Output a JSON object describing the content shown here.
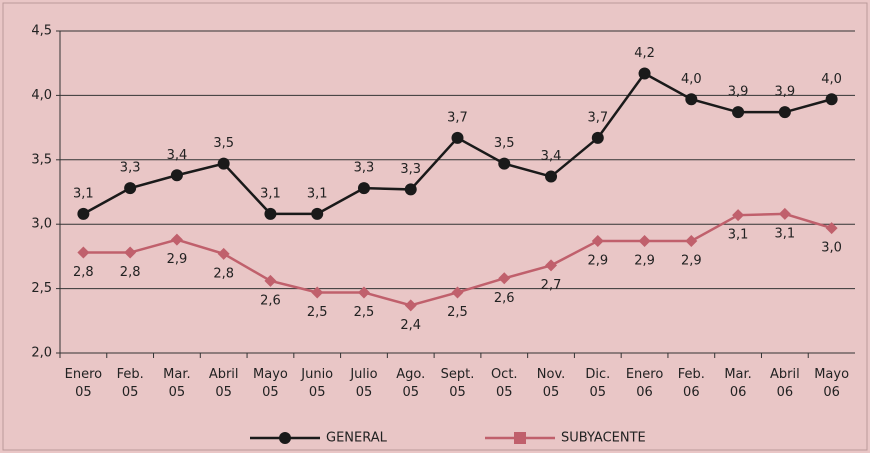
{
  "chart_data": {
    "type": "line",
    "categories": [
      "Enero 05",
      "Feb. 05",
      "Mar. 05",
      "Abril 05",
      "Mayo 05",
      "Junio 05",
      "Julio 05",
      "Ago. 05",
      "Sept. 05",
      "Oct. 05",
      "Nov. 05",
      "Dic. 05",
      "Enero 06",
      "Feb. 06",
      "Mar. 06",
      "Abril 06",
      "Mayo 06"
    ],
    "series": [
      {
        "name": "GENERAL",
        "color": "#1a1a1a",
        "marker": "circle",
        "label_position": "above",
        "values": [
          3.08,
          3.28,
          3.38,
          3.47,
          3.08,
          3.08,
          3.28,
          3.27,
          3.67,
          3.47,
          3.37,
          3.67,
          4.17,
          3.97,
          3.87,
          3.87,
          3.97
        ],
        "value_labels": [
          "3,1",
          "3,3",
          "3,4",
          "3,5",
          "3,1",
          "3,1",
          "3,3",
          "3,3",
          "3,7",
          "3,5",
          "3,4",
          "3,7",
          "4,2",
          "4,0",
          "3,9",
          "3,9",
          "4,0"
        ]
      },
      {
        "name": "SUBYACENTE",
        "color": "#c0606c",
        "marker": "diamond",
        "label_position": "below",
        "values": [
          2.78,
          2.78,
          2.88,
          2.77,
          2.56,
          2.47,
          2.47,
          2.37,
          2.47,
          2.58,
          2.68,
          2.87,
          2.87,
          2.87,
          3.07,
          3.08,
          2.97
        ],
        "value_labels": [
          "2,8",
          "2,8",
          "2,9",
          "2,8",
          "2,6",
          "2,5",
          "2,5",
          "2,4",
          "2,5",
          "2,6",
          "2,7",
          "2,9",
          "2,9",
          "2,9",
          "3,1",
          "3,1",
          "3,0"
        ]
      }
    ],
    "ylim": [
      2.0,
      4.5
    ],
    "yticks": [
      {
        "value": 2.0,
        "label": "2,0"
      },
      {
        "value": 2.5,
        "label": "2,5"
      },
      {
        "value": 3.0,
        "label": "3,0"
      },
      {
        "value": 3.5,
        "label": "3,5"
      },
      {
        "value": 4.0,
        "label": "4,0"
      },
      {
        "value": 4.5,
        "label": "4,5"
      }
    ],
    "grid": true,
    "legend": "bottom"
  }
}
